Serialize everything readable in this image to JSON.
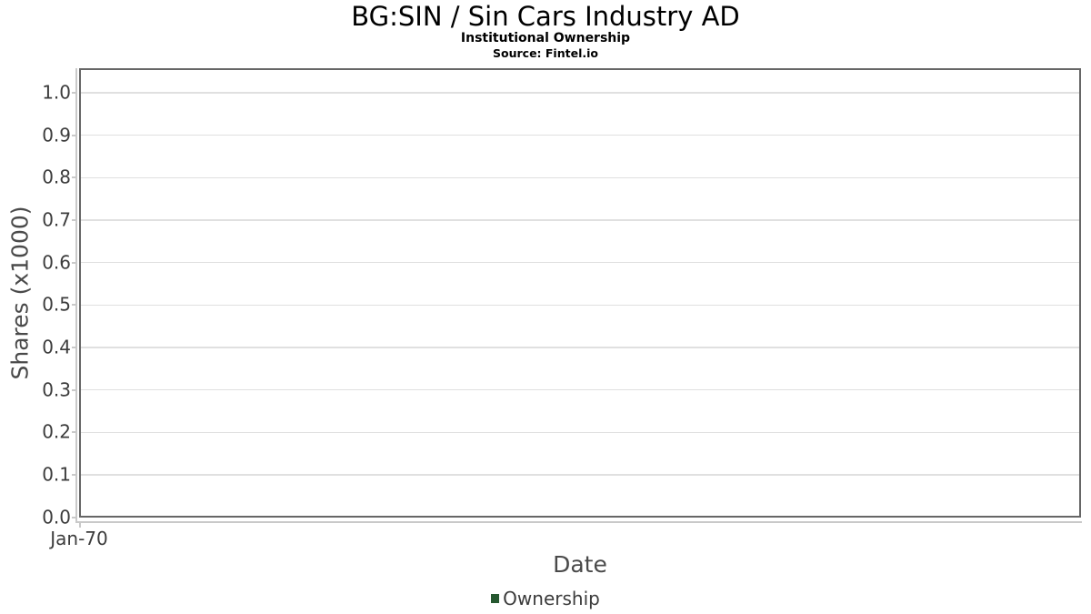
{
  "chart_data": {
    "type": "line",
    "title": "BG:SIN / Sin Cars Industry AD",
    "subtitle": "Institutional Ownership",
    "source": "Source: Fintel.io",
    "xlabel": "Date",
    "ylabel": "Shares (x1000)",
    "ylim": [
      0,
      1.056
    ],
    "grid": true,
    "x_tick_labels": [
      "Jan-70"
    ],
    "y_ticks": [
      {
        "value": 0.0,
        "label": "0.0"
      },
      {
        "value": 0.1,
        "label": "0.1"
      },
      {
        "value": 0.2,
        "label": "0.2"
      },
      {
        "value": 0.3,
        "label": "0.3"
      },
      {
        "value": 0.4,
        "label": "0.4"
      },
      {
        "value": 0.5,
        "label": "0.5"
      },
      {
        "value": 0.6,
        "label": "0.6"
      },
      {
        "value": 0.7,
        "label": "0.7"
      },
      {
        "value": 0.8,
        "label": "0.8"
      },
      {
        "value": 0.9,
        "label": "0.9"
      },
      {
        "value": 1.0,
        "label": "1.0"
      }
    ],
    "legend": {
      "position": "bottom",
      "entries": [
        {
          "label": "Ownership",
          "marker_color": "#265830"
        }
      ]
    },
    "series": [
      {
        "name": "Ownership",
        "x": [],
        "y": []
      }
    ]
  }
}
